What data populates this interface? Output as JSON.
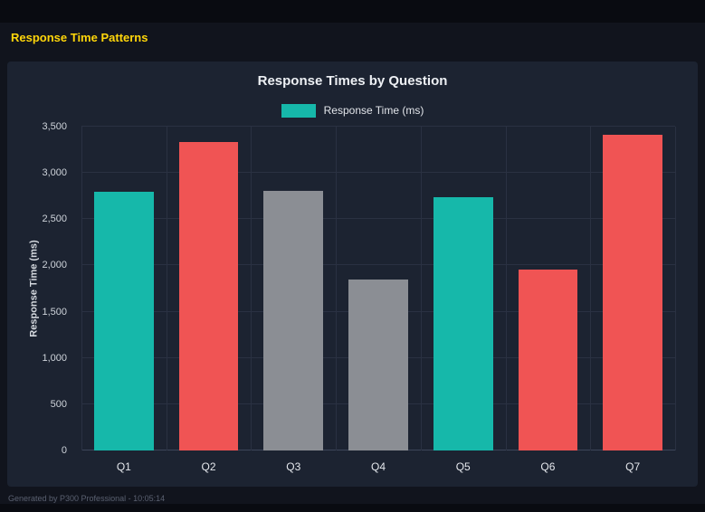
{
  "header": {
    "title": "Response Time Patterns"
  },
  "chart_data": {
    "type": "bar",
    "title": "Response Times by Question",
    "categories": [
      "Q1",
      "Q2",
      "Q3",
      "Q4",
      "Q5",
      "Q6",
      "Q7"
    ],
    "values": [
      2800,
      3330,
      2810,
      1845,
      2735,
      1960,
      3410
    ],
    "bar_colors": [
      "teal",
      "red",
      "gray",
      "gray",
      "teal",
      "red",
      "red"
    ],
    "palette": {
      "teal": "#16b8aa",
      "red": "#f05454",
      "gray": "#8b8e94"
    },
    "legend": [
      {
        "label": "Response Time (ms)",
        "color": "teal"
      }
    ],
    "legend_position": "top",
    "xlabel": "",
    "ylabel": "Response Time (ms)",
    "ylim": [
      0,
      3500
    ],
    "grid": true,
    "yticks": [
      {
        "value": 0,
        "label": "0"
      },
      {
        "value": 500,
        "label": "500"
      },
      {
        "value": 1000,
        "label": "1,000"
      },
      {
        "value": 1500,
        "label": "1,500"
      },
      {
        "value": 2000,
        "label": "2,000"
      },
      {
        "value": 2500,
        "label": "2,500"
      },
      {
        "value": 3000,
        "label": "3,000"
      },
      {
        "value": 3500,
        "label": "3,500"
      }
    ]
  },
  "footer": {
    "text": "Generated by P300 Professional - 10:05:14"
  }
}
